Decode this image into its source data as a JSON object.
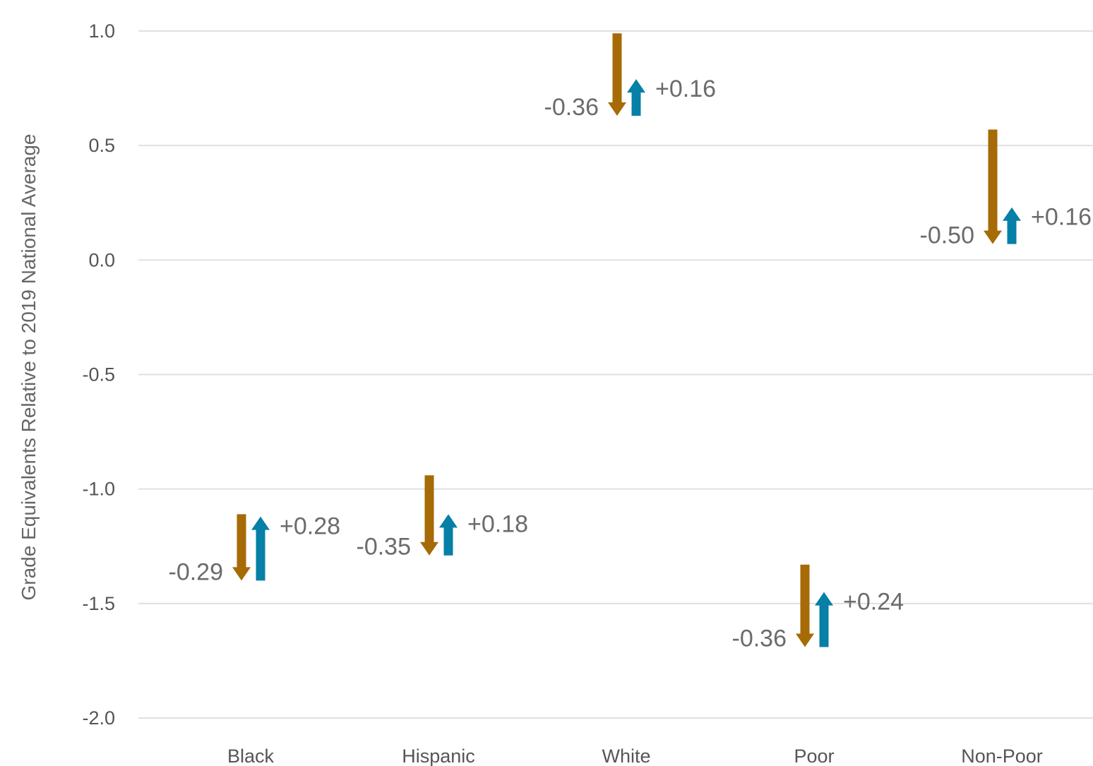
{
  "chart_data": {
    "type": "arrow",
    "title": "",
    "xlabel": "",
    "ylabel": "Grade Equivalents Relative to 2019 National Average",
    "ylim": [
      -2.0,
      1.0
    ],
    "yticks": [
      1.0,
      0.5,
      0.0,
      -0.5,
      -1.0,
      -1.5,
      -2.0
    ],
    "ytick_labels": [
      "1.0",
      "0.5",
      "0.0",
      "-0.5",
      "-1.0",
      "-1.5",
      "-2.0"
    ],
    "grid": true,
    "categories": [
      "Black",
      "Hispanic",
      "White",
      "Poor",
      "Non-Poor"
    ],
    "series": [
      {
        "values": [
          {
            "start": -1.11,
            "end": -1.4,
            "label": "-0.29"
          },
          {
            "start": -0.94,
            "end": -1.29,
            "label": "-0.35"
          },
          {
            "start": 0.99,
            "end": 0.63,
            "label": "-0.36"
          },
          {
            "start": -1.33,
            "end": -1.69,
            "label": "-0.36"
          },
          {
            "start": 0.57,
            "end": 0.07,
            "label": "-0.50"
          }
        ],
        "color": "#A66A06"
      },
      {
        "values": [
          {
            "start": -1.4,
            "end": -1.12,
            "label": "+0.28"
          },
          {
            "start": -1.29,
            "end": -1.11,
            "label": "+0.18"
          },
          {
            "start": 0.63,
            "end": 0.79,
            "label": "+0.16"
          },
          {
            "start": -1.69,
            "end": -1.45,
            "label": "+0.24"
          },
          {
            "start": 0.07,
            "end": 0.23,
            "label": "+0.16"
          }
        ],
        "color": "#0680A6"
      }
    ]
  }
}
